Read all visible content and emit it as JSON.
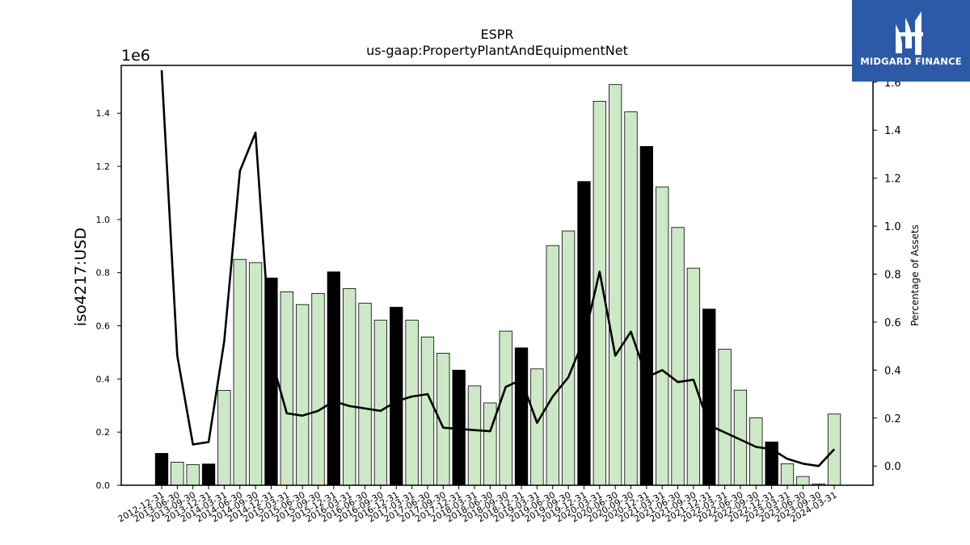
{
  "logo": {
    "text": "MIDGARD FINANCE",
    "bg_color": "#2d5aa7"
  },
  "chart_data": {
    "type": "bar",
    "title": "ESPR",
    "subtitle": "us-gaap:PropertyPlantAndEquipmentNet",
    "ylabel": "iso4217:USD",
    "y_offset_label": "1e6",
    "y2label": "Percentage of Assets",
    "ylim": [
      0,
      1580000
    ],
    "y2lim": [
      -0.08,
      1.67
    ],
    "yticks": [
      0.0,
      0.2,
      0.4,
      0.6,
      0.8,
      1.0,
      1.2,
      1.4
    ],
    "y2ticks": [
      0.0,
      0.2,
      0.4,
      0.6,
      0.8,
      1.0,
      1.2,
      1.4,
      1.6
    ],
    "bar_colors": {
      "q4": "#000000",
      "other": "#cde8c6"
    },
    "line_color": "#000000",
    "categories": [
      "2012-12-31",
      "2013-06-30",
      "2013-09-30",
      "2013-12-31",
      "2014-03-31",
      "2014-06-30",
      "2014-09-30",
      "2014-12-31",
      "2015-03-31",
      "2015-06-30",
      "2015-09-30",
      "2015-12-31",
      "2016-03-31",
      "2016-06-30",
      "2016-09-30",
      "2016-12-31",
      "2017-03-31",
      "2017-06-30",
      "2017-09-30",
      "2017-12-31",
      "2018-03-31",
      "2018-06-30",
      "2018-09-30",
      "2018-12-31",
      "2019-03-31",
      "2019-06-30",
      "2019-09-30",
      "2019-12-31",
      "2020-03-31",
      "2020-06-30",
      "2020-09-30",
      "2020-12-31",
      "2021-03-31",
      "2021-06-30",
      "2021-09-30",
      "2021-12-31",
      "2022-03-31",
      "2022-06-30",
      "2022-09-30",
      "2022-12-31",
      "2023-03-31",
      "2023-06-30",
      "2023-09-30",
      "2024-03-31"
    ],
    "series": [
      {
        "type": "bar",
        "values": [
          120000,
          87000,
          78000,
          80000,
          357000,
          850000,
          838000,
          780000,
          728000,
          680000,
          722000,
          803000,
          740000,
          685000,
          621000,
          670000,
          621000,
          558000,
          497000,
          433000,
          374000,
          310000,
          580000,
          517000,
          438000,
          902000,
          957000,
          1143000,
          1445000,
          1508000,
          1405000,
          1275000,
          1122000,
          970000,
          817000,
          663000,
          512000,
          358000,
          254000,
          163000,
          81000,
          33000,
          5000,
          268000
        ]
      },
      {
        "type": "line",
        "axis": "right",
        "values": [
          1.65,
          0.46,
          0.09,
          0.1,
          0.52,
          1.23,
          1.39,
          0.45,
          0.22,
          0.21,
          0.23,
          0.27,
          0.25,
          0.24,
          0.23,
          0.27,
          0.29,
          0.3,
          0.16,
          0.155,
          0.15,
          0.145,
          0.33,
          0.36,
          0.18,
          0.29,
          0.37,
          0.53,
          0.81,
          0.46,
          0.56,
          0.37,
          0.4,
          0.35,
          0.36,
          0.17,
          0.14,
          0.11,
          0.08,
          0.07,
          0.03,
          0.01,
          0.0,
          0.07
        ]
      }
    ]
  }
}
